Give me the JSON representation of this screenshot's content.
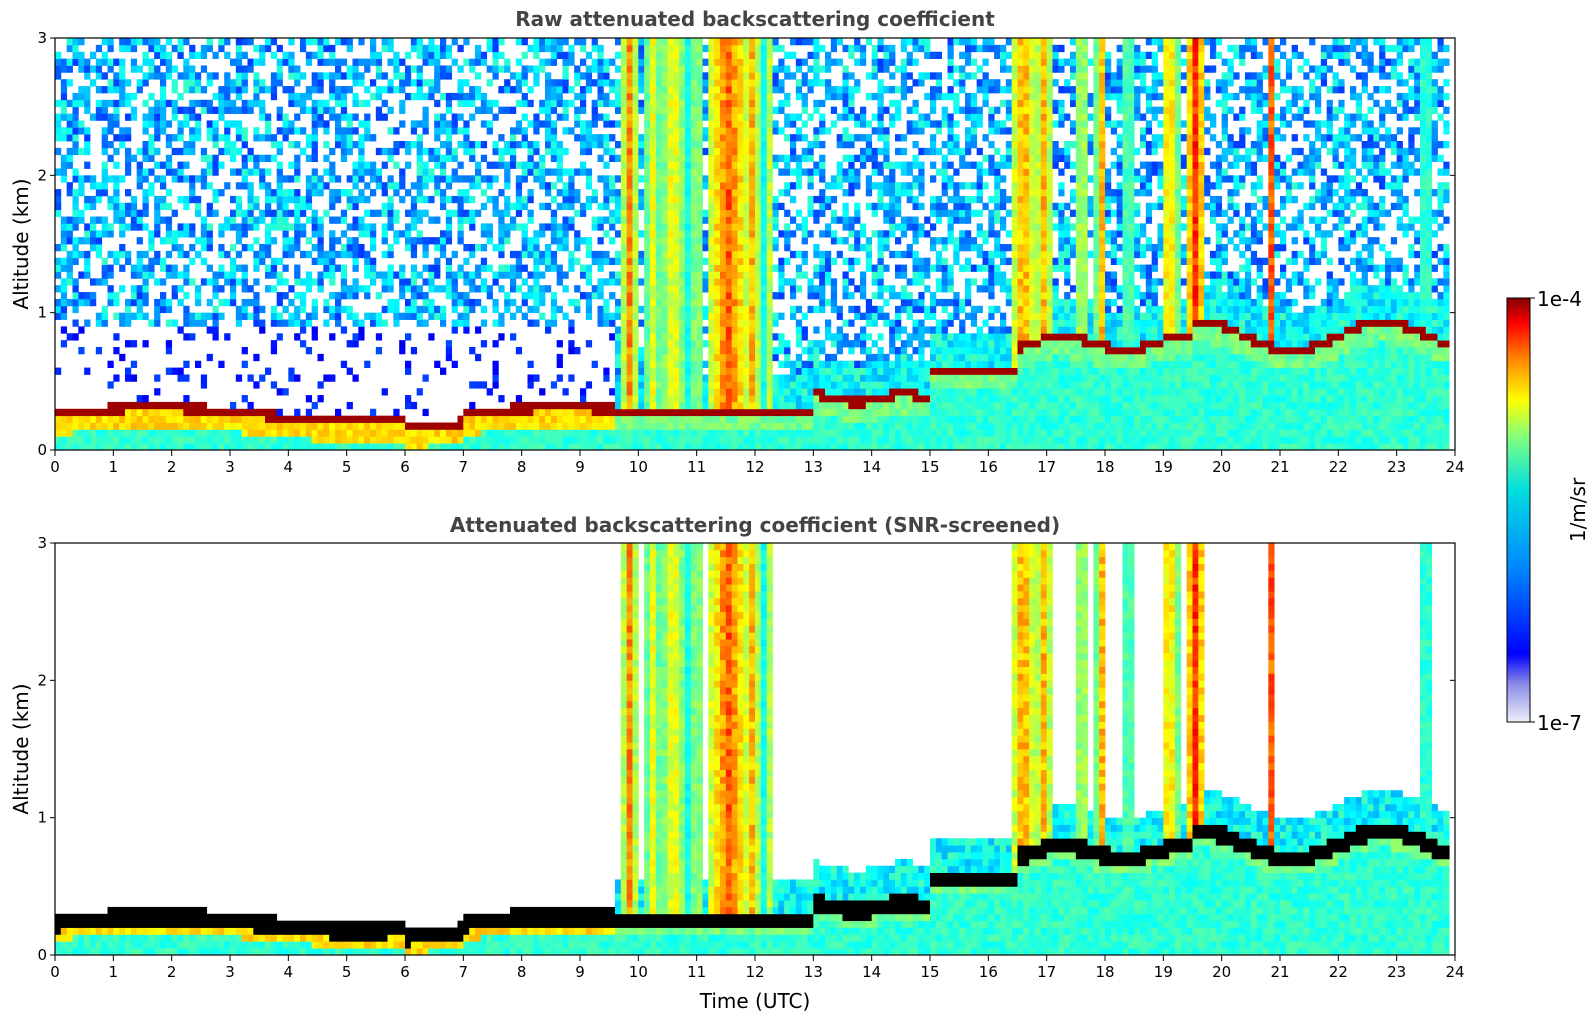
{
  "panels": [
    {
      "title": "Raw attenuated backscattering coefficient",
      "ylabel": "Altitude (km)",
      "xlabel": ""
    },
    {
      "title": "Attenuated backscattering coefficient (SNR-screened)",
      "ylabel": "Altitude (km)",
      "xlabel": "Time (UTC)"
    }
  ],
  "colorbar": {
    "label": "1/m/sr",
    "max_label": "1e-4",
    "min_label": "1e-7",
    "colormap": "jet"
  },
  "chart_data": [
    {
      "type": "heatmap",
      "title": "Raw attenuated backscattering coefficient",
      "xlabel": "",
      "ylabel": "Altitude (km)",
      "xlim": [
        0,
        24
      ],
      "ylim": [
        0,
        3
      ],
      "x_ticks": [
        "0",
        "1",
        "2",
        "3",
        "4",
        "5",
        "6",
        "7",
        "8",
        "9",
        "10",
        "11",
        "12",
        "13",
        "14",
        "15",
        "16",
        "17",
        "18",
        "19",
        "20",
        "21",
        "22",
        "23",
        "24"
      ],
      "y_ticks": [
        "0",
        "1",
        "2",
        "3"
      ],
      "color_scale": "log",
      "clim": [
        "1e-7",
        "1e-4"
      ],
      "screened": false
    },
    {
      "type": "heatmap",
      "title": "Attenuated backscattering coefficient (SNR-screened)",
      "xlabel": "Time (UTC)",
      "ylabel": "Altitude (km)",
      "xlim": [
        0,
        24
      ],
      "ylim": [
        0,
        3
      ],
      "x_ticks": [
        "0",
        "1",
        "2",
        "3",
        "4",
        "5",
        "6",
        "7",
        "8",
        "9",
        "10",
        "11",
        "12",
        "13",
        "14",
        "15",
        "16",
        "17",
        "18",
        "19",
        "20",
        "21",
        "22",
        "23",
        "24"
      ],
      "y_ticks": [
        "0",
        "1",
        "2",
        "3"
      ],
      "color_scale": "log",
      "clim": [
        "1e-7",
        "1e-4"
      ],
      "screened": true
    }
  ]
}
